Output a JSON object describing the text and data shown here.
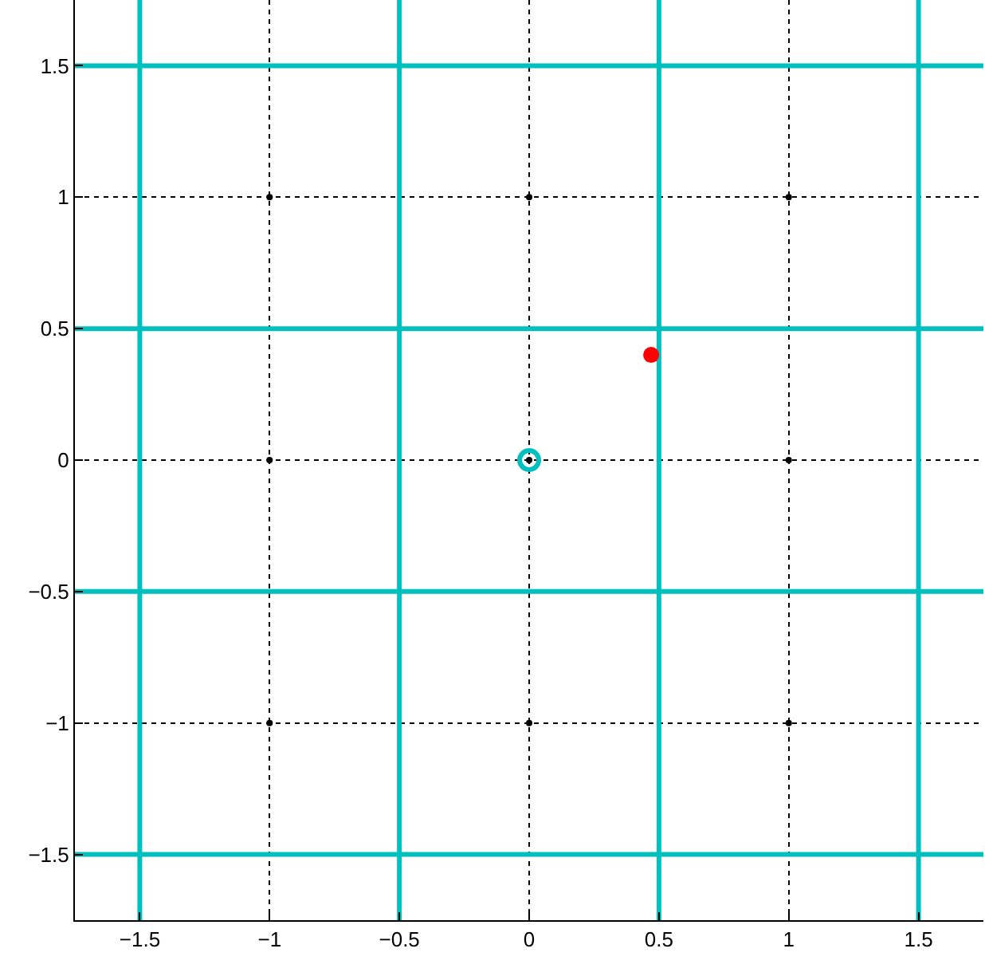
{
  "chart_data": {
    "type": "scatter",
    "xlim": [
      -1.75,
      1.75
    ],
    "ylim": [
      -1.75,
      1.75
    ],
    "xticks": [
      -1.5,
      -1,
      -0.5,
      0,
      0.5,
      1,
      1.5
    ],
    "yticks": [
      -1.5,
      -1,
      -0.5,
      0,
      0.5,
      1,
      1.5
    ],
    "grid": true,
    "series": [
      {
        "type": "line",
        "color": "#00bfbf",
        "x": [
          -1.5,
          -1.5
        ],
        "values": [
          -1.75,
          1.75
        ]
      },
      {
        "type": "line",
        "color": "#00bfbf",
        "x": [
          -0.5,
          -0.5
        ],
        "values": [
          -1.75,
          1.75
        ]
      },
      {
        "type": "line",
        "color": "#00bfbf",
        "x": [
          0.5,
          0.5
        ],
        "values": [
          -1.75,
          1.75
        ]
      },
      {
        "type": "line",
        "color": "#00bfbf",
        "x": [
          1.5,
          1.5
        ],
        "values": [
          -1.75,
          1.75
        ]
      },
      {
        "type": "line",
        "color": "#00bfbf",
        "x": [
          -1.75,
          1.75
        ],
        "values": [
          -1.5,
          -1.5
        ]
      },
      {
        "type": "line",
        "color": "#00bfbf",
        "x": [
          -1.75,
          1.75
        ],
        "values": [
          -0.5,
          -0.5
        ]
      },
      {
        "type": "line",
        "color": "#00bfbf",
        "x": [
          -1.75,
          1.75
        ],
        "values": [
          0.5,
          0.5
        ]
      },
      {
        "type": "line",
        "color": "#00bfbf",
        "x": [
          -1.75,
          1.75
        ],
        "values": [
          1.5,
          1.5
        ]
      },
      {
        "color": "#000000",
        "marker": "circle",
        "x": [
          -1,
          -1,
          -1,
          0,
          0,
          0,
          1,
          1,
          1
        ],
        "values": [
          -1,
          0,
          1,
          -1,
          0,
          1,
          -1,
          0,
          1
        ]
      },
      {
        "color": "#00bfbf",
        "marker": "circle-open",
        "x": [
          0
        ],
        "values": [
          0
        ]
      },
      {
        "color": "#ff0000",
        "marker": "circle",
        "x": [
          0.47
        ],
        "values": [
          0.4
        ]
      }
    ]
  }
}
